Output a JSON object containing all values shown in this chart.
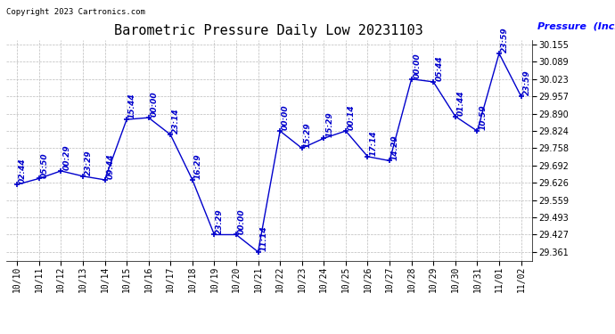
{
  "title": "Barometric Pressure Daily Low 20231103",
  "ylabel": "Pressure  (Inches/Hg)",
  "copyright": "Copyright 2023 Cartronics.com",
  "ylim": [
    29.328,
    30.172
  ],
  "yticks": [
    29.361,
    29.427,
    29.493,
    29.559,
    29.626,
    29.692,
    29.758,
    29.824,
    29.89,
    29.957,
    30.023,
    30.089,
    30.155
  ],
  "dates": [
    "10/10",
    "10/11",
    "10/12",
    "10/13",
    "10/14",
    "10/15",
    "10/16",
    "10/17",
    "10/18",
    "10/19",
    "10/20",
    "10/21",
    "10/22",
    "10/23",
    "10/24",
    "10/25",
    "10/26",
    "10/27",
    "10/28",
    "10/29",
    "10/30",
    "10/31",
    "11/01",
    "11/02"
  ],
  "values": [
    29.619,
    29.642,
    29.671,
    29.651,
    29.637,
    29.868,
    29.875,
    29.81,
    29.637,
    29.427,
    29.427,
    29.361,
    29.824,
    29.758,
    29.796,
    29.824,
    29.726,
    29.71,
    30.023,
    30.012,
    29.88,
    29.824,
    30.121,
    29.957
  ],
  "time_labels": [
    "02:44",
    "05:50",
    "00:29",
    "23:29",
    "09:44",
    "15:44",
    "00:00",
    "23:14",
    "16:29",
    "23:29",
    "00:00",
    "11:14",
    "00:00",
    "15:29",
    "15:29",
    "00:14",
    "17:14",
    "14:29",
    "00:00",
    "05:44",
    "01:44",
    "10:59",
    "23:59",
    "23:59"
  ],
  "line_color": "#0000cc",
  "grid_color": "#bbbbbb",
  "title_color": "#000000",
  "ylabel_color": "#0000ff",
  "copyright_color": "#000000",
  "background_color": "#ffffff",
  "title_fontsize": 11,
  "label_fontsize": 8,
  "tick_fontsize": 7,
  "annotation_fontsize": 6.5
}
